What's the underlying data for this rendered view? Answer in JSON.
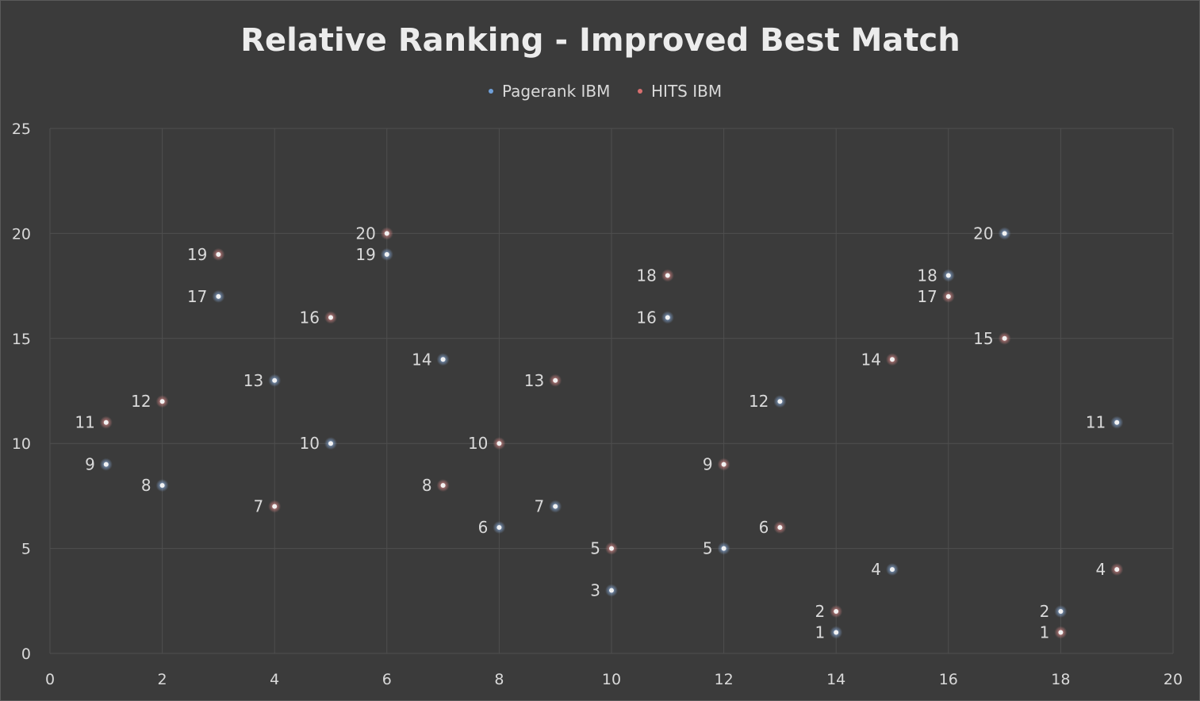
{
  "chart_data": {
    "type": "scatter",
    "title": "Relative Ranking - Improved Best Match",
    "xlabel": "",
    "ylabel": "",
    "xlim": [
      0,
      20
    ],
    "ylim": [
      0,
      25
    ],
    "x_ticks": [
      0,
      2,
      4,
      6,
      8,
      10,
      12,
      14,
      16,
      18,
      20
    ],
    "y_ticks": [
      0,
      5,
      10,
      15,
      20,
      25
    ],
    "x_tick_labels": [
      "0",
      "2",
      "4",
      "6",
      "8",
      "10",
      "12",
      "14",
      "16",
      "18",
      "20"
    ],
    "y_tick_labels": [
      "0",
      "5",
      "10",
      "15",
      "20",
      "25"
    ],
    "grid": true,
    "legend_position": "top",
    "series": [
      {
        "name": "Pagerank IBM",
        "color": "#6f9fd8",
        "x": [
          1,
          2,
          3,
          4,
          5,
          6,
          7,
          8,
          9,
          10,
          11,
          12,
          13,
          14,
          15,
          16,
          17,
          18,
          19
        ],
        "y": [
          9,
          8,
          17,
          13,
          10,
          19,
          14,
          6,
          7,
          3,
          16,
          5,
          12,
          1,
          4,
          18,
          20,
          2,
          11
        ],
        "labels": [
          "9",
          "8",
          "17",
          "13",
          "10",
          "19",
          "14",
          "6",
          "7",
          "3",
          "16",
          "5",
          "12",
          "1",
          "4",
          "18",
          "20",
          "2",
          "11"
        ]
      },
      {
        "name": "HITS IBM",
        "color": "#d86f6f",
        "x": [
          1,
          2,
          3,
          4,
          5,
          6,
          7,
          8,
          9,
          10,
          11,
          12,
          13,
          14,
          15,
          16,
          17,
          18,
          19
        ],
        "y": [
          11,
          12,
          19,
          7,
          16,
          20,
          8,
          10,
          13,
          5,
          18,
          9,
          6,
          2,
          14,
          17,
          15,
          1,
          4
        ],
        "labels": [
          "11",
          "12",
          "19",
          "7",
          "16",
          "20",
          "8",
          "10",
          "13",
          "5",
          "18",
          "9",
          "6",
          "2",
          "14",
          "17",
          "15",
          "1",
          "4"
        ]
      }
    ]
  }
}
